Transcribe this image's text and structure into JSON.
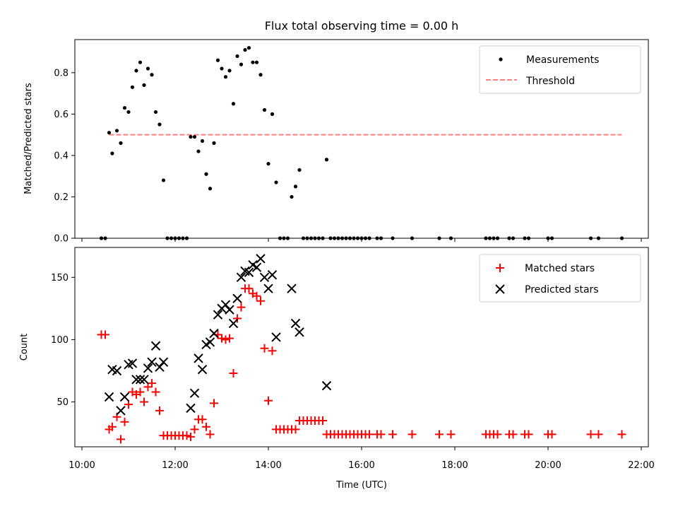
{
  "chart_data": [
    {
      "type": "scatter",
      "title": "Flux total observing time = 0.00 h",
      "xlabel": "",
      "ylabel": "Matched/Predicted stars",
      "xlim": [
        "10:00",
        "22:00"
      ],
      "ylim": [
        0,
        0.96
      ],
      "yticks": [
        0.0,
        0.2,
        0.4,
        0.6,
        0.8
      ],
      "ytick_labels": [
        "0.0",
        "0.2",
        "0.4",
        "0.6",
        "0.8"
      ],
      "legend": {
        "position": "top-right",
        "entries": [
          "Measurements",
          "Threshold"
        ]
      },
      "series": [
        {
          "name": "Measurements",
          "marker": "dot",
          "color": "#000000",
          "points": [
            [
              "10:25",
              0.0
            ],
            [
              "10:30",
              0.0
            ],
            [
              "10:35",
              0.51
            ],
            [
              "10:39",
              0.41
            ],
            [
              "10:45",
              0.52
            ],
            [
              "10:50",
              0.46
            ],
            [
              "10:55",
              0.63
            ],
            [
              "11:00",
              0.61
            ],
            [
              "11:05",
              0.73
            ],
            [
              "11:10",
              0.81
            ],
            [
              "11:15",
              0.85
            ],
            [
              "11:20",
              0.74
            ],
            [
              "11:25",
              0.82
            ],
            [
              "11:30",
              0.79
            ],
            [
              "11:35",
              0.61
            ],
            [
              "11:40",
              0.55
            ],
            [
              "11:45",
              0.28
            ],
            [
              "11:50",
              0.0
            ],
            [
              "11:55",
              0.0
            ],
            [
              "12:00",
              0.0
            ],
            [
              "12:05",
              0.0
            ],
            [
              "12:10",
              0.0
            ],
            [
              "12:15",
              0.0
            ],
            [
              "12:20",
              0.49
            ],
            [
              "12:25",
              0.49
            ],
            [
              "12:30",
              0.42
            ],
            [
              "12:35",
              0.47
            ],
            [
              "12:40",
              0.31
            ],
            [
              "12:45",
              0.24
            ],
            [
              "12:50",
              0.46
            ],
            [
              "12:55",
              0.86
            ],
            [
              "13:00",
              0.82
            ],
            [
              "13:05",
              0.78
            ],
            [
              "13:10",
              0.81
            ],
            [
              "13:15",
              0.65
            ],
            [
              "13:20",
              0.88
            ],
            [
              "13:25",
              0.84
            ],
            [
              "13:30",
              0.91
            ],
            [
              "13:35",
              0.92
            ],
            [
              "13:40",
              0.85
            ],
            [
              "13:45",
              0.85
            ],
            [
              "13:50",
              0.79
            ],
            [
              "13:55",
              0.62
            ],
            [
              "14:00",
              0.36
            ],
            [
              "14:05",
              0.6
            ],
            [
              "14:10",
              0.27
            ],
            [
              "14:15",
              0.0
            ],
            [
              "14:20",
              0.0
            ],
            [
              "14:25",
              0.0
            ],
            [
              "14:30",
              0.2
            ],
            [
              "14:35",
              0.25
            ],
            [
              "14:40",
              0.33
            ],
            [
              "14:45",
              0.0
            ],
            [
              "14:50",
              0.0
            ],
            [
              "14:55",
              0.0
            ],
            [
              "15:00",
              0.0
            ],
            [
              "15:05",
              0.0
            ],
            [
              "15:10",
              0.0
            ],
            [
              "15:15",
              0.38
            ],
            [
              "15:20",
              0.0
            ],
            [
              "15:25",
              0.0
            ],
            [
              "15:30",
              0.0
            ],
            [
              "15:35",
              0.0
            ],
            [
              "15:40",
              0.0
            ],
            [
              "15:45",
              0.0
            ],
            [
              "15:50",
              0.0
            ],
            [
              "15:55",
              0.0
            ],
            [
              "16:00",
              0.0
            ],
            [
              "16:05",
              0.0
            ],
            [
              "16:10",
              0.0
            ],
            [
              "16:20",
              0.0
            ],
            [
              "16:25",
              0.0
            ],
            [
              "16:40",
              0.0
            ],
            [
              "17:05",
              0.0
            ],
            [
              "17:40",
              0.0
            ],
            [
              "17:55",
              0.0
            ],
            [
              "18:40",
              0.0
            ],
            [
              "18:45",
              0.0
            ],
            [
              "18:50",
              0.0
            ],
            [
              "18:55",
              0.0
            ],
            [
              "19:10",
              0.0
            ],
            [
              "19:15",
              0.0
            ],
            [
              "19:30",
              0.0
            ],
            [
              "19:35",
              0.0
            ],
            [
              "20:00",
              0.0
            ],
            [
              "20:05",
              0.0
            ],
            [
              "20:55",
              0.0
            ],
            [
              "21:05",
              0.0
            ],
            [
              "21:35",
              0.0
            ]
          ]
        },
        {
          "name": "Threshold",
          "type": "line",
          "style": "dashed",
          "color": "#ff8080",
          "points": [
            [
              "10:35",
              0.5
            ],
            [
              "21:35",
              0.5
            ]
          ]
        }
      ]
    },
    {
      "type": "scatter",
      "title": "",
      "xlabel": "Time (UTC)",
      "ylabel": "Count",
      "xlim": [
        "10:00",
        "22:00"
      ],
      "ylim": [
        14,
        174
      ],
      "xticks": [
        "10:00",
        "12:00",
        "14:00",
        "16:00",
        "18:00",
        "20:00",
        "22:00"
      ],
      "yticks": [
        50,
        100,
        150
      ],
      "ytick_labels": [
        "50",
        "100",
        "150"
      ],
      "legend": {
        "position": "top-right",
        "entries": [
          "Matched stars",
          "Predicted stars"
        ]
      },
      "series": [
        {
          "name": "Matched stars",
          "marker": "plus",
          "color": "#ff0000",
          "points": [
            [
              "10:25",
              104
            ],
            [
              "10:30",
              104
            ],
            [
              "10:35",
              28
            ],
            [
              "10:39",
              30
            ],
            [
              "10:45",
              38
            ],
            [
              "10:50",
              20
            ],
            [
              "10:55",
              34
            ],
            [
              "11:00",
              48
            ],
            [
              "11:05",
              58
            ],
            [
              "11:10",
              56
            ],
            [
              "11:15",
              58
            ],
            [
              "11:20",
              50
            ],
            [
              "11:25",
              62
            ],
            [
              "11:30",
              65
            ],
            [
              "11:35",
              58
            ],
            [
              "11:40",
              43
            ],
            [
              "11:45",
              23
            ],
            [
              "11:50",
              23
            ],
            [
              "11:55",
              23
            ],
            [
              "12:00",
              23
            ],
            [
              "12:05",
              23
            ],
            [
              "12:10",
              23
            ],
            [
              "12:15",
              23
            ],
            [
              "12:20",
              22
            ],
            [
              "12:25",
              28
            ],
            [
              "12:30",
              36
            ],
            [
              "12:35",
              36
            ],
            [
              "12:40",
              30
            ],
            [
              "12:45",
              24
            ],
            [
              "12:50",
              49
            ],
            [
              "12:55",
              104
            ],
            [
              "13:00",
              101
            ],
            [
              "13:05",
              100
            ],
            [
              "13:10",
              101
            ],
            [
              "13:15",
              73
            ],
            [
              "13:20",
              117
            ],
            [
              "13:25",
              126
            ],
            [
              "13:30",
              141
            ],
            [
              "13:35",
              141
            ],
            [
              "13:40",
              137
            ],
            [
              "13:45",
              135
            ],
            [
              "13:50",
              131
            ],
            [
              "13:55",
              93
            ],
            [
              "14:00",
              51
            ],
            [
              "14:05",
              91
            ],
            [
              "14:10",
              28
            ],
            [
              "14:15",
              28
            ],
            [
              "14:20",
              28
            ],
            [
              "14:25",
              28
            ],
            [
              "14:30",
              28
            ],
            [
              "14:35",
              28
            ],
            [
              "14:40",
              35
            ],
            [
              "14:45",
              35
            ],
            [
              "14:50",
              35
            ],
            [
              "14:55",
              35
            ],
            [
              "15:00",
              35
            ],
            [
              "15:05",
              35
            ],
            [
              "15:10",
              35
            ],
            [
              "15:15",
              24
            ],
            [
              "15:20",
              24
            ],
            [
              "15:25",
              24
            ],
            [
              "15:30",
              24
            ],
            [
              "15:35",
              24
            ],
            [
              "15:40",
              24
            ],
            [
              "15:45",
              24
            ],
            [
              "15:50",
              24
            ],
            [
              "15:55",
              24
            ],
            [
              "16:00",
              24
            ],
            [
              "16:05",
              24
            ],
            [
              "16:10",
              24
            ],
            [
              "16:20",
              24
            ],
            [
              "16:25",
              24
            ],
            [
              "16:40",
              24
            ],
            [
              "17:05",
              24
            ],
            [
              "17:40",
              24
            ],
            [
              "17:55",
              24
            ],
            [
              "18:40",
              24
            ],
            [
              "18:45",
              24
            ],
            [
              "18:50",
              24
            ],
            [
              "18:55",
              24
            ],
            [
              "19:10",
              24
            ],
            [
              "19:15",
              24
            ],
            [
              "19:30",
              24
            ],
            [
              "19:35",
              24
            ],
            [
              "20:00",
              24
            ],
            [
              "20:05",
              24
            ],
            [
              "20:55",
              24
            ],
            [
              "21:05",
              24
            ],
            [
              "21:35",
              24
            ]
          ]
        },
        {
          "name": "Predicted stars",
          "marker": "x",
          "color": "#000000",
          "points": [
            [
              "10:35",
              54
            ],
            [
              "10:39",
              76
            ],
            [
              "10:45",
              75
            ],
            [
              "10:50",
              43
            ],
            [
              "10:55",
              54
            ],
            [
              "11:00",
              80
            ],
            [
              "11:05",
              81
            ],
            [
              "11:10",
              68
            ],
            [
              "11:15",
              68
            ],
            [
              "11:20",
              68
            ],
            [
              "11:25",
              77
            ],
            [
              "11:30",
              82
            ],
            [
              "11:35",
              95
            ],
            [
              "11:40",
              78
            ],
            [
              "11:45",
              82
            ],
            [
              "12:20",
              45
            ],
            [
              "12:25",
              57
            ],
            [
              "12:30",
              85
            ],
            [
              "12:35",
              76
            ],
            [
              "12:40",
              96
            ],
            [
              "12:45",
              98
            ],
            [
              "12:50",
              105
            ],
            [
              "12:55",
              120
            ],
            [
              "13:00",
              125
            ],
            [
              "13:05",
              128
            ],
            [
              "13:10",
              124
            ],
            [
              "13:15",
              113
            ],
            [
              "13:20",
              133
            ],
            [
              "13:25",
              150
            ],
            [
              "13:30",
              155
            ],
            [
              "13:35",
              154
            ],
            [
              "13:40",
              160
            ],
            [
              "13:45",
              158
            ],
            [
              "13:50",
              165
            ],
            [
              "13:55",
              150
            ],
            [
              "14:00",
              141
            ],
            [
              "14:05",
              152
            ],
            [
              "14:10",
              102
            ],
            [
              "14:30",
              141
            ],
            [
              "14:35",
              113
            ],
            [
              "14:40",
              106
            ],
            [
              "15:15",
              63
            ]
          ]
        }
      ]
    }
  ]
}
